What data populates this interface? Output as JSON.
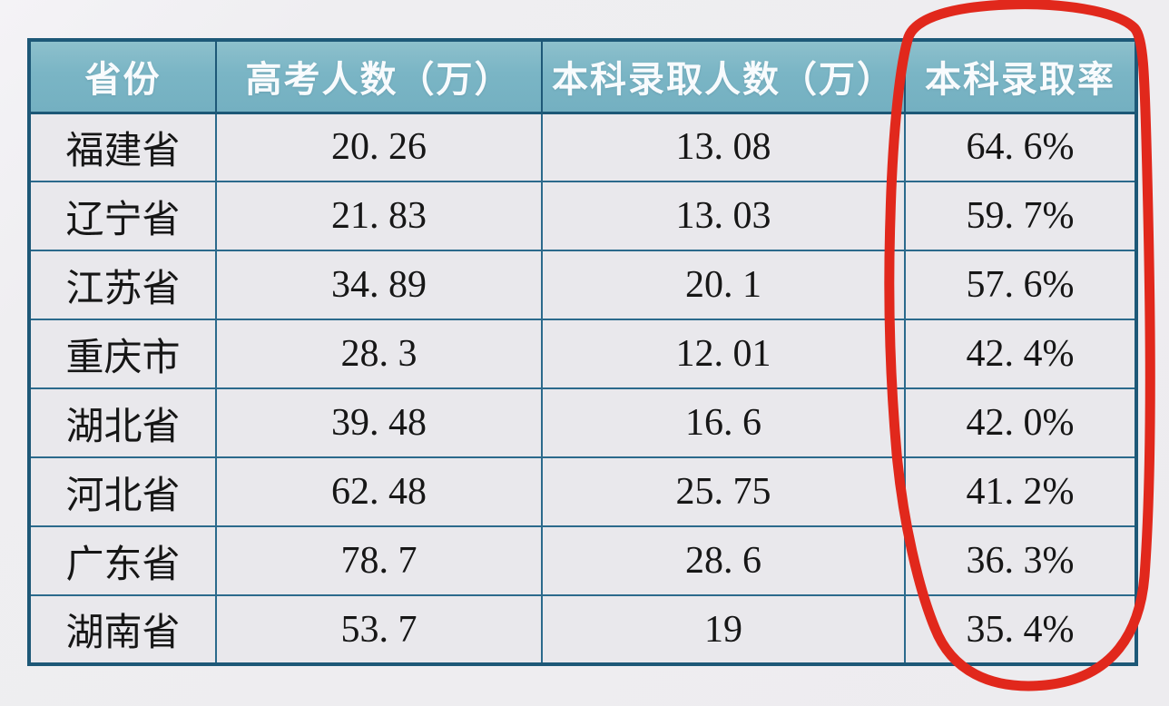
{
  "page": {
    "background_color": "#efeef1"
  },
  "table": {
    "header_bg_color": "#7ab5c5",
    "header_text_color": "#f8fbfd",
    "cell_bg_color": "#e9e8ec",
    "border_color": "#2b6a8c",
    "outer_border_color": "#1d5877",
    "columns": [
      {
        "key": "province",
        "label": "省份"
      },
      {
        "key": "candidates",
        "label": "高考人数（万）"
      },
      {
        "key": "admitted",
        "label": "本科录取人数（万）"
      },
      {
        "key": "rate",
        "label": "本科录取率"
      }
    ],
    "rows": [
      {
        "province": "福建省",
        "candidates": "20. 26",
        "admitted": "13. 08",
        "rate": "64. 6%"
      },
      {
        "province": "辽宁省",
        "candidates": "21. 83",
        "admitted": "13. 03",
        "rate": "59. 7%"
      },
      {
        "province": "江苏省",
        "candidates": "34. 89",
        "admitted": "20. 1",
        "rate": "57. 6%"
      },
      {
        "province": "重庆市",
        "candidates": "28. 3",
        "admitted": "12. 01",
        "rate": "42. 4%"
      },
      {
        "province": "湖北省",
        "candidates": "39. 48",
        "admitted": "16. 6",
        "rate": "42. 0%"
      },
      {
        "province": "河北省",
        "candidates": "62. 48",
        "admitted": "25. 75",
        "rate": "41. 2%"
      },
      {
        "province": "广东省",
        "candidates": "78. 7",
        "admitted": "28. 6",
        "rate": "36. 3%"
      },
      {
        "province": "湖南省",
        "candidates": "53. 7",
        "admitted": "19",
        "rate": "35. 4%"
      }
    ]
  },
  "annotation": {
    "shape": "hand-drawn-ellipse",
    "color": "#e1281c",
    "stroke_width": 11,
    "around_column": "本科录取率"
  },
  "chart_data": {
    "type": "table",
    "columns": [
      "省份",
      "高考人数（万）",
      "本科录取人数（万）",
      "本科录取率"
    ],
    "rows": [
      [
        "福建省",
        20.26,
        13.08,
        "64.6%"
      ],
      [
        "辽宁省",
        21.83,
        13.03,
        "59.7%"
      ],
      [
        "江苏省",
        34.89,
        20.1,
        "57.6%"
      ],
      [
        "重庆市",
        28.3,
        12.01,
        "42.4%"
      ],
      [
        "湖北省",
        39.48,
        16.6,
        "42.0%"
      ],
      [
        "河北省",
        62.48,
        25.75,
        "41.2%"
      ],
      [
        "广东省",
        78.7,
        28.6,
        "36.3%"
      ],
      [
        "湖南省",
        53.7,
        19,
        "35.4%"
      ]
    ],
    "annotation": "red hand-drawn ellipse circling the 本科录取率 (undergraduate admission rate) column",
    "layout": "grid on, teal header row, light gray cells, dark blue borders"
  }
}
